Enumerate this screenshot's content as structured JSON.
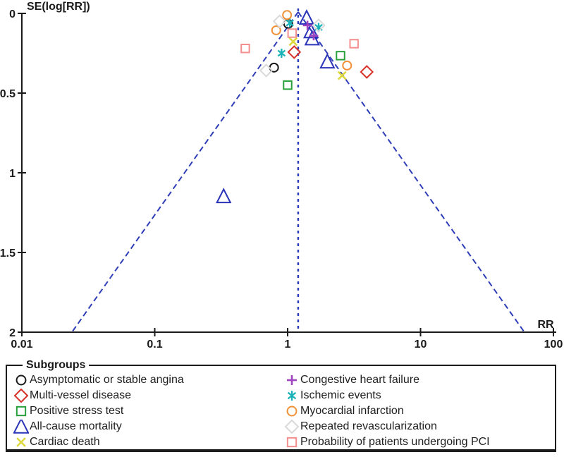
{
  "chart_data": {
    "type": "scatter",
    "subtype": "funnel_plot",
    "ylabel": "SE(log[RR])",
    "xlabel": "RR",
    "x_scale": "log",
    "xlim": [
      0.01,
      100
    ],
    "ylim": [
      0,
      2
    ],
    "y_axis_inverted": true,
    "x_ticks": [
      "0.01",
      "0.1",
      "1",
      "10",
      "100"
    ],
    "y_ticks": [
      "0",
      "0.5",
      "1",
      "1.5",
      "2"
    ],
    "grid": false,
    "pooled_rr": 1.2,
    "funnel_z": 1.96,
    "funnel_line_style": "dashed",
    "series": [
      {
        "name": "Asymptomatic or stable angina",
        "marker": "circle",
        "color": "#1a1a1a",
        "points": [
          [
            1.01,
            0.066
          ],
          [
            0.79,
            0.34
          ]
        ]
      },
      {
        "name": "Multi-vessel disease",
        "marker": "diamond",
        "color": "#d63028",
        "points": [
          [
            1.12,
            0.243
          ],
          [
            3.94,
            0.367
          ]
        ]
      },
      {
        "name": "Positive stress test",
        "marker": "square",
        "color": "#28a03c",
        "points": [
          [
            2.5,
            0.265
          ],
          [
            1.0,
            0.45
          ]
        ]
      },
      {
        "name": "All-cause mortality",
        "marker": "triangle",
        "color": "#2a34b8",
        "points": [
          [
            1.39,
            0.03
          ],
          [
            1.5,
            0.115
          ],
          [
            1.53,
            0.16
          ],
          [
            1.99,
            0.305
          ],
          [
            0.33,
            1.15
          ]
        ]
      },
      {
        "name": "Cardiac death",
        "marker": "x",
        "color": "#ddd83e",
        "points": [
          [
            1.1,
            0.177
          ],
          [
            2.57,
            0.39
          ]
        ]
      },
      {
        "name": "Congestive heart failure",
        "marker": "plus",
        "color": "#a044c0",
        "points": [
          [
            1.41,
            0.075
          ],
          [
            1.57,
            0.14
          ]
        ]
      },
      {
        "name": "Ischemic events",
        "marker": "asterisk",
        "color": "#18b2b8",
        "points": [
          [
            1.04,
            0.06
          ],
          [
            1.71,
            0.088
          ],
          [
            0.9,
            0.25
          ]
        ]
      },
      {
        "name": "Myocardial infarction",
        "marker": "circle",
        "color": "#f09138",
        "points": [
          [
            0.99,
            0.01
          ],
          [
            0.82,
            0.106
          ],
          [
            2.8,
            0.327
          ]
        ]
      },
      {
        "name": "Repeated revascularization",
        "marker": "diamond",
        "color": "#d9d9d9",
        "points": [
          [
            0.87,
            0.05
          ],
          [
            1.71,
            0.075
          ],
          [
            0.69,
            0.358
          ]
        ]
      },
      {
        "name": "Probability of patients undergoing PCI",
        "marker": "square",
        "color": "#f48f8f",
        "points": [
          [
            1.08,
            0.124
          ],
          [
            0.48,
            0.22
          ],
          [
            3.16,
            0.19
          ]
        ]
      }
    ],
    "legend_position": "bottom"
  },
  "legend": {
    "title": "Subgroups"
  },
  "colors": {
    "axis": "#1a1a1a",
    "funnel_line": "#2e3db8",
    "text": "#1a1a1a"
  }
}
